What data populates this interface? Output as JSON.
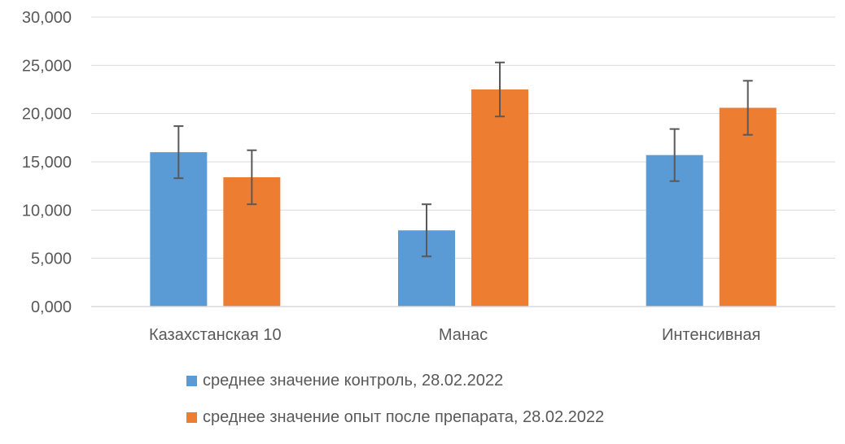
{
  "chart_data": {
    "type": "bar",
    "categories": [
      "Казахстанская 10",
      "Манас",
      "Интенсивная"
    ],
    "series": [
      {
        "name": "среднее значение контроль, 28.02.2022",
        "color": "#5B9BD5",
        "values": [
          16.0,
          7.9,
          15.7
        ],
        "error": [
          2.7,
          2.7,
          2.7
        ]
      },
      {
        "name": "среднее значение опыт после препарата, 28.02.2022",
        "color": "#ED7D31",
        "values": [
          13.4,
          22.5,
          20.6
        ],
        "error": [
          2.8,
          2.8,
          2.8
        ]
      }
    ],
    "y_ticks": [
      "0,000",
      "5,000",
      "10,000",
      "15,000",
      "20,000",
      "25,000",
      "30,000"
    ],
    "ylim": [
      0,
      30
    ],
    "grid": true,
    "legend_position": "bottom",
    "title": "",
    "xlabel": "",
    "ylabel": ""
  }
}
